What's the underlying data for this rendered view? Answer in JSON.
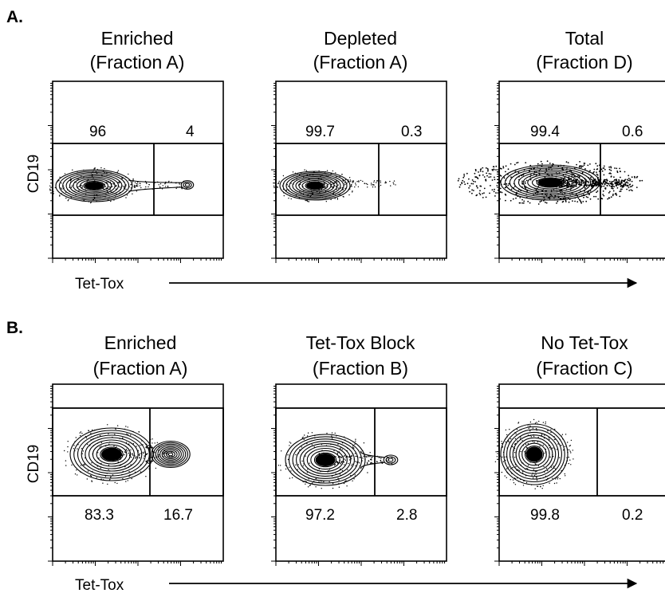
{
  "figure": {
    "panels": [
      {
        "label": "A.",
        "ylabel": "CD19",
        "xlabel": "Tet-Tox",
        "plots": [
          {
            "title_line1": "Enriched",
            "title_line2": "(Fraction A)",
            "neg_pct": "96",
            "pos_pct": "4"
          },
          {
            "title_line1": "Depleted",
            "title_line2": "(Fraction A)",
            "neg_pct": "99.7",
            "pos_pct": "0.3"
          },
          {
            "title_line1": "Total",
            "title_line2": "(Fraction D)",
            "neg_pct": "99.4",
            "pos_pct": "0.6"
          }
        ]
      },
      {
        "label": "B.",
        "ylabel": "CD19",
        "xlabel": "Tet-Tox",
        "plots": [
          {
            "title_line1": "Enriched",
            "title_line2": "(Fraction A)",
            "neg_pct": "83.3",
            "pos_pct": "16.7"
          },
          {
            "title_line1": "Tet-Tox Block",
            "title_line2": "(Fraction B)",
            "neg_pct": "97.2",
            "pos_pct": "2.8"
          },
          {
            "title_line1": "No Tet-Tox",
            "title_line2": "(Fraction C)",
            "neg_pct": "99.8",
            "pos_pct": "0.2"
          }
        ]
      }
    ]
  },
  "chart_data": [
    {
      "type": "scatter",
      "subtype": "flow-cytometry-contour",
      "panel": "A.",
      "xlabel": "Tet-Tox",
      "ylabel": "CD19",
      "x_scale": "log",
      "y_scale": "log",
      "plots": [
        {
          "title": "Enriched (Fraction A)",
          "gates": [
            {
              "name": "Tet-Tox negative",
              "percent": 96
            },
            {
              "name": "Tet-Tox positive",
              "percent": 4
            }
          ]
        },
        {
          "title": "Depleted (Fraction A)",
          "gates": [
            {
              "name": "Tet-Tox negative",
              "percent": 99.7
            },
            {
              "name": "Tet-Tox positive",
              "percent": 0.3
            }
          ]
        },
        {
          "title": "Total (Fraction D)",
          "gates": [
            {
              "name": "Tet-Tox negative",
              "percent": 99.4
            },
            {
              "name": "Tet-Tox positive",
              "percent": 0.6
            }
          ]
        }
      ]
    },
    {
      "type": "scatter",
      "subtype": "flow-cytometry-contour",
      "panel": "B.",
      "xlabel": "Tet-Tox",
      "ylabel": "CD19",
      "x_scale": "log",
      "y_scale": "log",
      "plots": [
        {
          "title": "Enriched (Fraction A)",
          "gates": [
            {
              "name": "Tet-Tox negative",
              "percent": 83.3
            },
            {
              "name": "Tet-Tox positive",
              "percent": 16.7
            }
          ]
        },
        {
          "title": "Tet-Tox Block (Fraction B)",
          "gates": [
            {
              "name": "Tet-Tox negative",
              "percent": 97.2
            },
            {
              "name": "Tet-Tox positive",
              "percent": 2.8
            }
          ]
        },
        {
          "title": "No Tet-Tox (Fraction C)",
          "gates": [
            {
              "name": "Tet-Tox negative",
              "percent": 99.8
            },
            {
              "name": "Tet-Tox positive",
              "percent": 0.2
            }
          ]
        }
      ]
    }
  ]
}
